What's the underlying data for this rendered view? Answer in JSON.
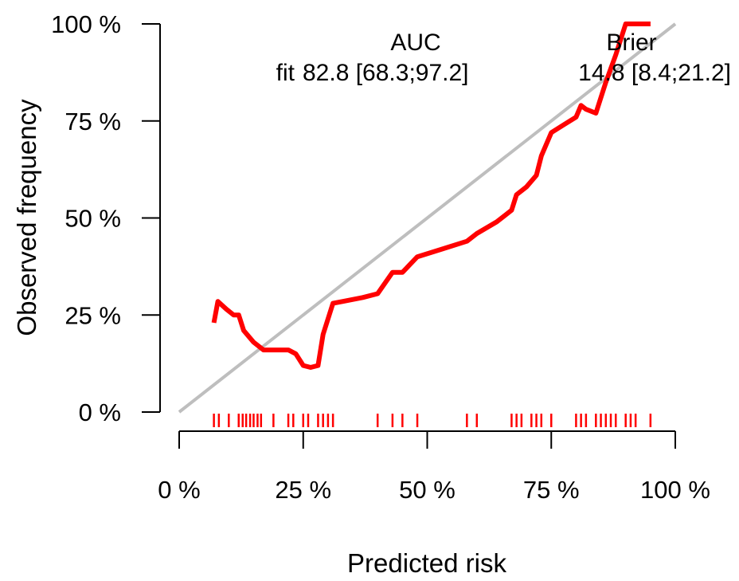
{
  "chart_data": {
    "type": "line",
    "title": "",
    "xlabel": "Predicted risk",
    "ylabel": "Observed frequency",
    "xlim": [
      0,
      100
    ],
    "ylim": [
      0,
      100
    ],
    "x_ticks": [
      "0 %",
      "25 %",
      "50 %",
      "75 %",
      "100 %"
    ],
    "y_ticks": [
      "0 %",
      "25 %",
      "50 %",
      "75 %",
      "100 %"
    ],
    "grid": false,
    "legend_position": "top-right",
    "reference_line": {
      "x": [
        0,
        100
      ],
      "y": [
        0,
        100
      ],
      "color": "#BEBEBE"
    },
    "series": [
      {
        "color": "#FF0000",
        "x": [
          7,
          7.8,
          9.5,
          11,
          12,
          13,
          15,
          17,
          18,
          20,
          22,
          23.5,
          25,
          26.5,
          28,
          29,
          31,
          33,
          37,
          40,
          43,
          45,
          48,
          53,
          58,
          60,
          64,
          67,
          68,
          70,
          72,
          73,
          75,
          77.5,
          80,
          81,
          82,
          84,
          86,
          88,
          90,
          92,
          95
        ],
        "y": [
          23,
          28.5,
          26.5,
          25,
          25,
          21,
          18,
          16,
          16,
          16,
          16,
          15,
          12,
          11.5,
          12,
          20,
          28,
          28.5,
          29.5,
          30.5,
          36,
          36,
          40,
          42,
          44,
          46,
          49,
          52,
          56,
          58,
          61,
          66,
          72,
          74,
          76,
          79,
          78,
          77,
          85,
          92,
          100,
          100,
          100
        ]
      }
    ],
    "rug_x": [
      7,
      8,
      10,
      12,
      12.8,
      13.5,
      14.3,
      15,
      15.8,
      16.5,
      19,
      22,
      23,
      25,
      26,
      28,
      29,
      30,
      31,
      40,
      43,
      45,
      48,
      58,
      60,
      67,
      68,
      69,
      71,
      72,
      73,
      75,
      80,
      81,
      82,
      84,
      85,
      86,
      87,
      88,
      90,
      91,
      92,
      95
    ],
    "legend": {
      "col1_header": "AUC",
      "col2_header": "Brier",
      "row_label": "fit",
      "col1_value": "82.8 [68.3;97.2]",
      "col2_value": "14.8 [8.4;21.2]"
    }
  }
}
